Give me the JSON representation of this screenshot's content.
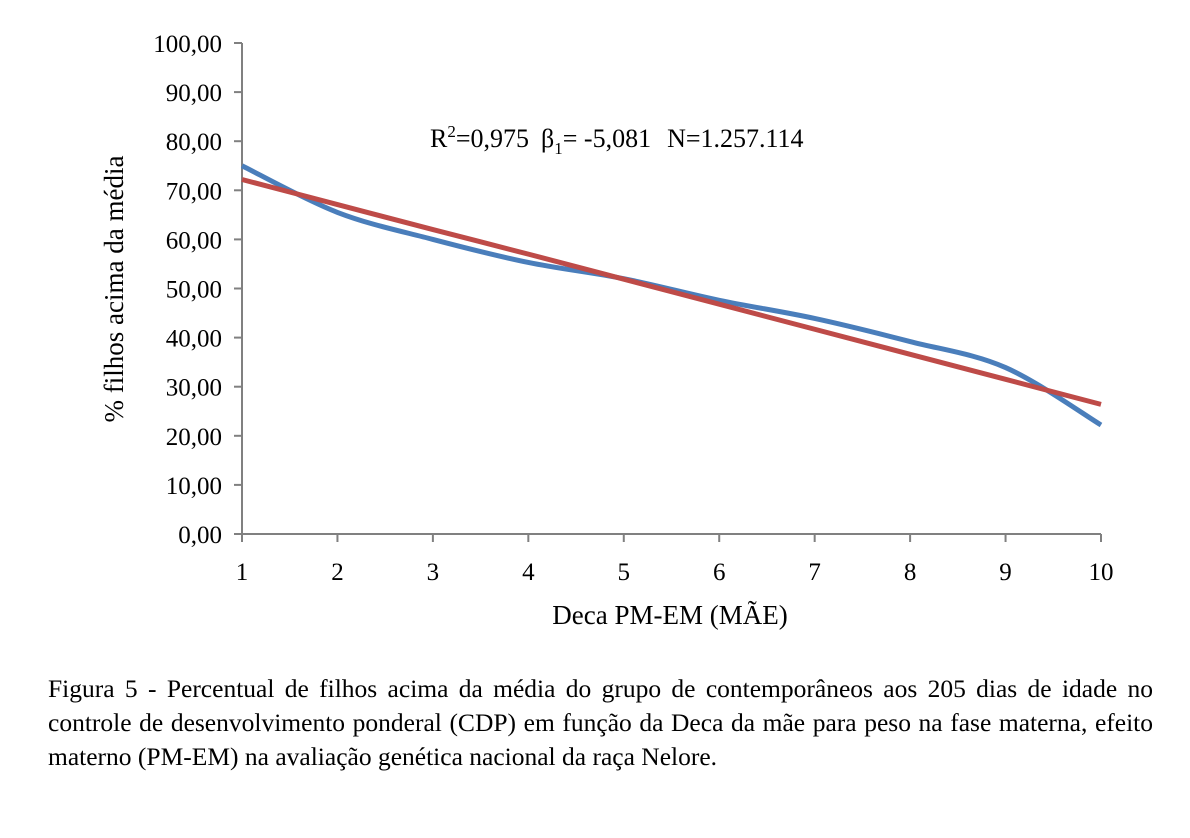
{
  "chart_data": {
    "type": "line",
    "xlabel": "Deca PM-EM (MÃE)",
    "ylabel": "% filhos acima da média",
    "x": [
      1,
      2,
      3,
      4,
      5,
      6,
      7,
      8,
      9,
      10
    ],
    "ylim": [
      0,
      100
    ],
    "yticks": [
      "0,00",
      "10,00",
      "20,00",
      "30,00",
      "40,00",
      "50,00",
      "60,00",
      "70,00",
      "80,00",
      "90,00",
      "100,00"
    ],
    "xticks": [
      "1",
      "2",
      "3",
      "4",
      "5",
      "6",
      "7",
      "8",
      "9",
      "10"
    ],
    "grid": false,
    "legend": "none",
    "series": [
      {
        "color": "#4a7ebb",
        "values": [
          75.0,
          65.5,
          60.0,
          55.3,
          52.0,
          47.6,
          43.9,
          39.2,
          33.9,
          22.2
        ]
      },
      {
        "color": "#be4b48",
        "values": [
          72.2,
          67.1,
          62.0,
          57.0,
          51.9,
          46.8,
          41.7,
          36.6,
          31.5,
          26.4
        ]
      }
    ],
    "annotation": {
      "r2_label": "R",
      "r2_sup": "2",
      "r2_value": "=0,975",
      "beta_label": "β",
      "beta_sub": "1",
      "beta_value": "= -5,081",
      "n_text": "N=1.257.114"
    }
  },
  "caption": {
    "label": "Figura 5 - ",
    "text": "Percentual de filhos acima da média do grupo de contemporâneos aos 205 dias de idade no controle de desenvolvimento ponderal (CDP) em função da Deca da mãe para peso na fase materna, efeito materno (PM-EM) na avaliação genética nacional da raça Nelore."
  }
}
